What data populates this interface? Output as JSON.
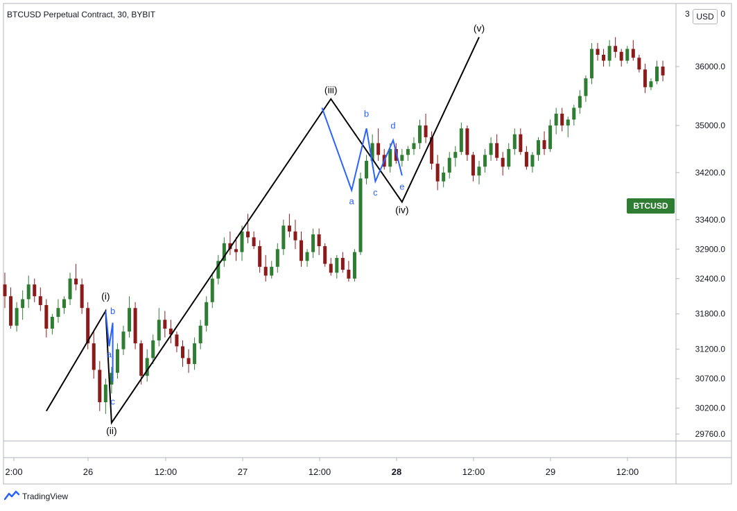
{
  "header": {
    "title": "BTCUSD Perpetual Contract, 30, BYBIT",
    "currency": "USD"
  },
  "symbol_badge": "BTCUSD",
  "footer": {
    "brand": "TradingView"
  },
  "colors": {
    "up": "#2e7d32",
    "down": "#8b1a1a",
    "wave_main": "#000000",
    "wave_sub": "#2962ff",
    "badge": "#2e7d32"
  },
  "chart_data": {
    "type": "candlestick",
    "y_axis": {
      "ticks": [
        29760,
        30200,
        30700,
        31200,
        31800,
        32400,
        32900,
        33400,
        34200,
        35000,
        36000
      ],
      "tick_labels": [
        "29760.0",
        "30200.0",
        "30700.0",
        "31200.0",
        "31800.0",
        "32400.0",
        "32900.0",
        "33400.0",
        "34200.0",
        "35000.0",
        "36000.0"
      ],
      "top_label_partial": "3",
      "top_label_suffix": "0"
    },
    "x_axis": {
      "labels": [
        "2:00",
        "26",
        "12:00",
        "27",
        "12:00",
        "28",
        "12:00",
        "29",
        "12:00"
      ],
      "bold_label": "28"
    },
    "candles": [
      [
        32300,
        32500,
        31900,
        32100
      ],
      [
        32100,
        32250,
        31550,
        31600
      ],
      [
        31600,
        32000,
        31500,
        31900
      ],
      [
        31900,
        32200,
        31700,
        32050
      ],
      [
        32050,
        32450,
        31900,
        32300
      ],
      [
        32300,
        32400,
        32000,
        32100
      ],
      [
        32100,
        32250,
        31850,
        31950
      ],
      [
        31950,
        32050,
        31400,
        31550
      ],
      [
        31550,
        31800,
        31450,
        31750
      ],
      [
        31750,
        32050,
        31650,
        31900
      ],
      [
        31900,
        32100,
        31800,
        32050
      ],
      [
        32050,
        32500,
        31950,
        32400
      ],
      [
        32400,
        32650,
        32200,
        32300
      ],
      [
        32300,
        32400,
        31800,
        31900
      ],
      [
        31900,
        32000,
        31200,
        31300
      ],
      [
        31300,
        31500,
        30700,
        30850
      ],
      [
        30850,
        31000,
        30150,
        30300
      ],
      [
        30300,
        30700,
        30100,
        30600
      ],
      [
        30600,
        30900,
        30450,
        30800
      ],
      [
        30800,
        31300,
        30700,
        31200
      ],
      [
        31200,
        31600,
        31100,
        31500
      ],
      [
        31500,
        32100,
        31400,
        31900
      ],
      [
        31900,
        32000,
        31200,
        31300
      ],
      [
        31300,
        31350,
        30600,
        30750
      ],
      [
        30750,
        31200,
        30650,
        31050
      ],
      [
        31050,
        31450,
        30950,
        31350
      ],
      [
        31350,
        31900,
        31250,
        31700
      ],
      [
        31700,
        31850,
        31400,
        31550
      ],
      [
        31550,
        31700,
        31300,
        31450
      ],
      [
        31450,
        31500,
        31150,
        31250
      ],
      [
        31250,
        31350,
        30900,
        31050
      ],
      [
        31050,
        31200,
        30800,
        30950
      ],
      [
        30950,
        31400,
        30850,
        31300
      ],
      [
        31300,
        31700,
        31200,
        31600
      ],
      [
        31600,
        32100,
        31500,
        32000
      ],
      [
        32000,
        32500,
        31900,
        32400
      ],
      [
        32400,
        32800,
        32300,
        32700
      ],
      [
        32700,
        33100,
        32600,
        33000
      ],
      [
        33000,
        33200,
        32800,
        32900
      ],
      [
        32900,
        33100,
        32700,
        32850
      ],
      [
        32850,
        33300,
        32700,
        33200
      ],
      [
        33200,
        33500,
        33000,
        33100
      ],
      [
        33100,
        33200,
        32900,
        32950
      ],
      [
        32950,
        33050,
        32500,
        32600
      ],
      [
        32600,
        32800,
        32350,
        32450
      ],
      [
        32450,
        32700,
        32400,
        32600
      ],
      [
        32600,
        33000,
        32500,
        32900
      ],
      [
        32900,
        33400,
        32800,
        33300
      ],
      [
        33300,
        33500,
        33100,
        33200
      ],
      [
        33200,
        33400,
        32900,
        33050
      ],
      [
        33050,
        33200,
        32600,
        32700
      ],
      [
        32700,
        32900,
        32600,
        32850
      ],
      [
        32850,
        33250,
        32750,
        33150
      ],
      [
        33150,
        33250,
        32800,
        32950
      ],
      [
        32950,
        33000,
        32600,
        32650
      ],
      [
        32650,
        32750,
        32450,
        32500
      ],
      [
        32500,
        32800,
        32400,
        32750
      ],
      [
        32750,
        32850,
        32500,
        32550
      ],
      [
        32550,
        32700,
        32350,
        32400
      ],
      [
        32400,
        32900,
        32350,
        32850
      ],
      [
        32850,
        34200,
        32800,
        34100
      ],
      [
        34100,
        34500,
        34000,
        34400
      ],
      [
        34400,
        34850,
        34300,
        34700
      ],
      [
        34700,
        34950,
        34400,
        34500
      ],
      [
        34500,
        34600,
        34250,
        34300
      ],
      [
        34300,
        34700,
        34200,
        34600
      ],
      [
        34600,
        34700,
        34350,
        34400
      ],
      [
        34400,
        34600,
        34300,
        34500
      ],
      [
        34500,
        34650,
        34400,
        34600
      ],
      [
        34600,
        34800,
        34500,
        34700
      ],
      [
        34700,
        35100,
        34600,
        35000
      ],
      [
        35000,
        35200,
        34700,
        34800
      ],
      [
        34800,
        34900,
        34250,
        34350
      ],
      [
        34350,
        34500,
        33900,
        34050
      ],
      [
        34050,
        34300,
        33950,
        34200
      ],
      [
        34200,
        34550,
        34100,
        34450
      ],
      [
        34450,
        34650,
        34300,
        34550
      ],
      [
        34550,
        35050,
        34500,
        34950
      ],
      [
        34950,
        35000,
        34400,
        34500
      ],
      [
        34500,
        34550,
        34050,
        34150
      ],
      [
        34150,
        34400,
        34000,
        34300
      ],
      [
        34300,
        34600,
        34200,
        34500
      ],
      [
        34500,
        34800,
        34400,
        34700
      ],
      [
        34700,
        34850,
        34400,
        34450
      ],
      [
        34450,
        34550,
        34150,
        34300
      ],
      [
        34300,
        34700,
        34250,
        34600
      ],
      [
        34600,
        34950,
        34500,
        34850
      ],
      [
        34850,
        34950,
        34500,
        34550
      ],
      [
        34550,
        34650,
        34250,
        34300
      ],
      [
        34300,
        34550,
        34200,
        34500
      ],
      [
        34500,
        34800,
        34400,
        34750
      ],
      [
        34750,
        34900,
        34500,
        34600
      ],
      [
        34600,
        35100,
        34550,
        35000
      ],
      [
        35000,
        35300,
        34850,
        35200
      ],
      [
        35200,
        35300,
        34900,
        35000
      ],
      [
        35000,
        35150,
        34800,
        35100
      ],
      [
        35100,
        35350,
        35000,
        35300
      ],
      [
        35300,
        35600,
        35200,
        35500
      ],
      [
        35500,
        35850,
        35400,
        35800
      ],
      [
        35800,
        36400,
        35700,
        36300
      ],
      [
        36300,
        36400,
        36100,
        36200
      ],
      [
        36200,
        36300,
        36000,
        36100
      ],
      [
        36100,
        36450,
        36000,
        36350
      ],
      [
        36350,
        36500,
        36150,
        36250
      ],
      [
        36250,
        36300,
        36000,
        36100
      ],
      [
        36100,
        36350,
        36050,
        36300
      ],
      [
        36300,
        36450,
        36100,
        36150
      ],
      [
        36150,
        36200,
        35900,
        35950
      ],
      [
        35950,
        36050,
        35550,
        35650
      ],
      [
        35650,
        35800,
        35600,
        35750
      ],
      [
        35750,
        36100,
        35700,
        36000
      ],
      [
        36000,
        36100,
        35750,
        35850
      ]
    ],
    "waves_main": {
      "points": [
        [
          7,
          30150
        ],
        [
          17,
          31850
        ],
        [
          18,
          29950
        ],
        [
          55,
          35450
        ],
        [
          67,
          33700
        ],
        [
          80,
          36500
        ]
      ],
      "labels": [
        {
          "text": "(i)",
          "at": [
            17,
            31950
          ],
          "pos": "above"
        },
        {
          "text": "(ii)",
          "at": [
            18,
            29950
          ],
          "pos": "below"
        },
        {
          "text": "(iii)",
          "at": [
            55,
            35450
          ],
          "pos": "above"
        },
        {
          "text": "(iv)",
          "at": [
            67,
            33700
          ],
          "pos": "below"
        },
        {
          "text": "(v)",
          "at": [
            80,
            36500
          ],
          "pos": "above"
        }
      ]
    },
    "waves_sub": [
      {
        "points": [
          [
            17,
            31850
          ],
          [
            17.6,
            31250
          ],
          [
            18.2,
            31650
          ],
          [
            18.2,
            30650
          ]
        ],
        "labels": [
          {
            "text": "a",
            "at": [
              17.6,
              31250
            ],
            "pos": "below"
          },
          {
            "text": "b",
            "at": [
              18.2,
              31700
            ],
            "pos": "above"
          },
          {
            "text": "c",
            "at": [
              18.2,
              30450
            ],
            "pos": "below"
          }
        ]
      },
      {
        "points": [
          [
            53.5,
            35300
          ],
          [
            58.5,
            33900
          ],
          [
            61,
            34950
          ],
          [
            62.5,
            34050
          ],
          [
            65.5,
            34750
          ],
          [
            67,
            34150
          ]
        ],
        "labels": [
          {
            "text": "a",
            "at": [
              58.5,
              33850
            ],
            "pos": "below"
          },
          {
            "text": "b",
            "at": [
              61,
              35050
            ],
            "pos": "above"
          },
          {
            "text": "c",
            "at": [
              62.5,
              34000
            ],
            "pos": "below"
          },
          {
            "text": "d",
            "at": [
              65.5,
              34850
            ],
            "pos": "above"
          },
          {
            "text": "e",
            "at": [
              67,
              34100
            ],
            "pos": "below"
          }
        ]
      }
    ]
  }
}
